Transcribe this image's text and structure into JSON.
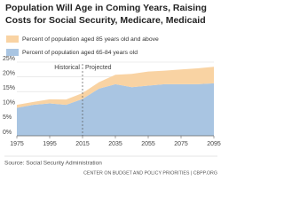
{
  "chart_data": {
    "type": "stacked-area",
    "title": [
      "Population Will Age in Coming Years, Raising",
      "Costs for Social Security, Medicare, Medicaid"
    ],
    "x": [
      1975,
      1985,
      1995,
      2005,
      2015,
      2025,
      2035,
      2045,
      2055,
      2065,
      2075,
      2085,
      2095
    ],
    "series": [
      {
        "name": "Percent of population aged 65-84 years old",
        "color": "#a9c5e2",
        "values": [
          9.5,
          10.5,
          11,
          10.5,
          12.5,
          16,
          17.5,
          16.5,
          17,
          17.5,
          17.5,
          17.5,
          17.8
        ]
      },
      {
        "name": "Percent of population aged 85 years old and above",
        "color": "#f9d3a3",
        "values": [
          1,
          1,
          1.4,
          1.8,
          2,
          2.2,
          3.2,
          4.5,
          4.8,
          4.6,
          5,
          5.4,
          5.6
        ]
      }
    ],
    "xlim": [
      1975,
      2095
    ],
    "xticks": [
      1975,
      1995,
      2015,
      2035,
      2055,
      2075,
      2095
    ],
    "ylim": [
      0,
      25
    ],
    "yticks": [
      {
        "value": 0,
        "label": "0%"
      },
      {
        "value": 5,
        "label": "5%"
      },
      {
        "value": 10,
        "label": "10%"
      },
      {
        "value": 15,
        "label": "15%"
      },
      {
        "value": 20,
        "label": "20%"
      },
      {
        "value": 25,
        "label": "25%"
      }
    ],
    "grid": true,
    "annotations": [
      "Historical",
      "Projected"
    ],
    "source": "Source: Social Security Administration",
    "credit": "CENTER ON BUDGET AND POLICY PRIORITIES | CBPP.ORG"
  }
}
